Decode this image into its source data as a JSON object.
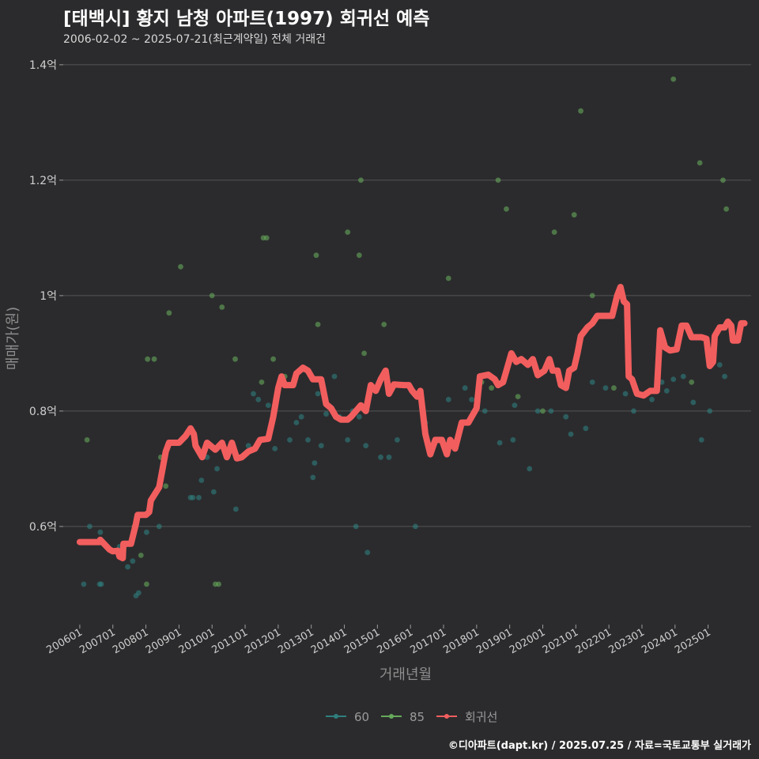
{
  "header": {
    "title": "[태백시] 황지 남청 아파트(1997) 회귀선 예측",
    "subtitle": "2006-02-02 ~ 2025-07-21(최근계약일) 전체 거래건"
  },
  "footer": {
    "credit": "©디아파트(dapt.kr) / 2025.07.25 / 자료=국토교통부 실거래가"
  },
  "colors": {
    "background": "#2b2b2d",
    "grid": "#555555",
    "series_60": "#2f7f7f",
    "series_85": "#66a95a",
    "regression": "#f25e5e"
  },
  "chart_data": {
    "type": "scatter",
    "xlabel": "거래년월",
    "ylabel": "매매가(원)",
    "x_range": [
      2005.5,
      2026.3
    ],
    "ylim": [
      0.43,
      1.43
    ],
    "y_ticks": [
      {
        "value": 0.6,
        "label": "0.6억"
      },
      {
        "value": 0.8,
        "label": "0.8억"
      },
      {
        "value": 1.0,
        "label": "1억"
      },
      {
        "value": 1.2,
        "label": "1.2억"
      },
      {
        "value": 1.4,
        "label": "1.4억"
      }
    ],
    "x_ticks": [
      {
        "value": 2006.0,
        "label": "200601"
      },
      {
        "value": 2007.0,
        "label": "200701"
      },
      {
        "value": 2008.0,
        "label": "200801"
      },
      {
        "value": 2009.0,
        "label": "200901"
      },
      {
        "value": 2010.0,
        "label": "201001"
      },
      {
        "value": 2011.0,
        "label": "201101"
      },
      {
        "value": 2012.0,
        "label": "201201"
      },
      {
        "value": 2013.0,
        "label": "201301"
      },
      {
        "value": 2014.0,
        "label": "201401"
      },
      {
        "value": 2015.0,
        "label": "201501"
      },
      {
        "value": 2016.0,
        "label": "201601"
      },
      {
        "value": 2017.0,
        "label": "201701"
      },
      {
        "value": 2018.0,
        "label": "201801"
      },
      {
        "value": 2019.0,
        "label": "201901"
      },
      {
        "value": 2020.0,
        "label": "202001"
      },
      {
        "value": 2021.0,
        "label": "202101"
      },
      {
        "value": 2022.0,
        "label": "202201"
      },
      {
        "value": 2023.0,
        "label": "202301"
      },
      {
        "value": 2024.0,
        "label": "202401"
      },
      {
        "value": 2025.0,
        "label": "202501"
      }
    ],
    "legend": [
      {
        "name": "60",
        "key": "series_60"
      },
      {
        "name": "85",
        "key": "series_85"
      },
      {
        "name": "회귀선",
        "key": "regression"
      }
    ],
    "series": [
      {
        "name": "60",
        "points": [
          [
            2006.12,
            0.5
          ],
          [
            2006.3,
            0.6
          ],
          [
            2006.6,
            0.5
          ],
          [
            2006.65,
            0.5
          ],
          [
            2006.62,
            0.59
          ],
          [
            2007.2,
            0.565
          ],
          [
            2007.45,
            0.53
          ],
          [
            2007.6,
            0.54
          ],
          [
            2007.7,
            0.48
          ],
          [
            2007.78,
            0.485
          ],
          [
            2008.02,
            0.59
          ],
          [
            2008.4,
            0.6
          ],
          [
            2009.35,
            0.65
          ],
          [
            2009.42,
            0.65
          ],
          [
            2009.6,
            0.65
          ],
          [
            2009.68,
            0.68
          ],
          [
            2009.85,
            0.72
          ],
          [
            2010.05,
            0.66
          ],
          [
            2010.15,
            0.7
          ],
          [
            2010.45,
            0.73
          ],
          [
            2010.72,
            0.63
          ],
          [
            2011.1,
            0.74
          ],
          [
            2011.25,
            0.83
          ],
          [
            2011.4,
            0.82
          ],
          [
            2011.7,
            0.81
          ],
          [
            2011.9,
            0.735
          ],
          [
            2012.35,
            0.75
          ],
          [
            2012.55,
            0.78
          ],
          [
            2012.7,
            0.79
          ],
          [
            2012.9,
            0.75
          ],
          [
            2013.05,
            0.685
          ],
          [
            2013.1,
            0.71
          ],
          [
            2013.2,
            0.83
          ],
          [
            2013.3,
            0.74
          ],
          [
            2013.45,
            0.795
          ],
          [
            2013.7,
            0.86
          ],
          [
            2013.85,
            0.79
          ],
          [
            2014.1,
            0.75
          ],
          [
            2014.25,
            0.8
          ],
          [
            2014.35,
            0.6
          ],
          [
            2014.45,
            0.79
          ],
          [
            2014.65,
            0.74
          ],
          [
            2014.7,
            0.555
          ],
          [
            2015.1,
            0.72
          ],
          [
            2015.35,
            0.72
          ],
          [
            2015.6,
            0.75
          ],
          [
            2016.15,
            0.6
          ],
          [
            2016.45,
            0.78
          ],
          [
            2017.15,
            0.82
          ],
          [
            2017.65,
            0.84
          ],
          [
            2017.85,
            0.82
          ],
          [
            2018.25,
            0.8
          ],
          [
            2018.7,
            0.745
          ],
          [
            2019.1,
            0.75
          ],
          [
            2019.15,
            0.81
          ],
          [
            2019.6,
            0.7
          ],
          [
            2019.85,
            0.8
          ],
          [
            2020.25,
            0.8
          ],
          [
            2020.7,
            0.79
          ],
          [
            2020.85,
            0.76
          ],
          [
            2021.3,
            0.77
          ],
          [
            2021.5,
            0.85
          ],
          [
            2021.9,
            0.84
          ],
          [
            2022.5,
            0.83
          ],
          [
            2022.75,
            0.8
          ],
          [
            2023.3,
            0.82
          ],
          [
            2023.6,
            0.85
          ],
          [
            2023.75,
            0.835
          ],
          [
            2023.95,
            0.855
          ],
          [
            2024.25,
            0.86
          ],
          [
            2024.55,
            0.815
          ],
          [
            2024.8,
            0.75
          ],
          [
            2025.35,
            0.88
          ],
          [
            2025.5,
            0.86
          ],
          [
            2025.05,
            0.8
          ]
        ]
      },
      {
        "name": "85",
        "points": [
          [
            2006.22,
            0.75
          ],
          [
            2007.65,
            0.6
          ],
          [
            2007.85,
            0.55
          ],
          [
            2008.02,
            0.5
          ],
          [
            2008.05,
            0.89
          ],
          [
            2008.25,
            0.89
          ],
          [
            2008.45,
            0.72
          ],
          [
            2008.6,
            0.67
          ],
          [
            2008.7,
            0.97
          ],
          [
            2009.05,
            1.05
          ],
          [
            2009.5,
            0.74
          ],
          [
            2010.0,
            1.0
          ],
          [
            2010.1,
            0.5
          ],
          [
            2010.2,
            0.5
          ],
          [
            2010.3,
            0.98
          ],
          [
            2010.7,
            0.89
          ],
          [
            2011.5,
            0.85
          ],
          [
            2011.55,
            1.1
          ],
          [
            2011.65,
            1.1
          ],
          [
            2011.85,
            0.89
          ],
          [
            2012.2,
            0.86
          ],
          [
            2013.15,
            1.07
          ],
          [
            2013.2,
            0.95
          ],
          [
            2014.1,
            1.11
          ],
          [
            2014.45,
            1.07
          ],
          [
            2014.5,
            1.2
          ],
          [
            2014.6,
            0.9
          ],
          [
            2015.2,
            0.95
          ],
          [
            2017.15,
            1.03
          ],
          [
            2018.15,
            0.85
          ],
          [
            2018.45,
            0.84
          ],
          [
            2018.65,
            1.2
          ],
          [
            2018.9,
            1.15
          ],
          [
            2019.25,
            0.825
          ],
          [
            2020.0,
            0.8
          ],
          [
            2020.35,
            1.11
          ],
          [
            2020.95,
            1.14
          ],
          [
            2021.15,
            1.32
          ],
          [
            2021.5,
            1.0
          ],
          [
            2022.15,
            0.84
          ],
          [
            2023.95,
            1.375
          ],
          [
            2024.5,
            0.85
          ],
          [
            2024.75,
            1.23
          ],
          [
            2025.45,
            1.2
          ],
          [
            2025.55,
            1.15
          ]
        ]
      }
    ],
    "regression": [
      [
        2006.0,
        0.573
      ],
      [
        2006.6,
        0.573
      ],
      [
        2006.62,
        0.577
      ],
      [
        2006.9,
        0.56
      ],
      [
        2007.0,
        0.557
      ],
      [
        2007.15,
        0.558
      ],
      [
        2007.2,
        0.548
      ],
      [
        2007.3,
        0.545
      ],
      [
        2007.32,
        0.57
      ],
      [
        2007.55,
        0.57
      ],
      [
        2007.7,
        0.605
      ],
      [
        2007.75,
        0.62
      ],
      [
        2008.0,
        0.62
      ],
      [
        2008.1,
        0.625
      ],
      [
        2008.15,
        0.645
      ],
      [
        2008.4,
        0.668
      ],
      [
        2008.6,
        0.73
      ],
      [
        2008.7,
        0.745
      ],
      [
        2009.0,
        0.745
      ],
      [
        2009.2,
        0.757
      ],
      [
        2009.35,
        0.77
      ],
      [
        2009.45,
        0.76
      ],
      [
        2009.5,
        0.74
      ],
      [
        2009.7,
        0.72
      ],
      [
        2009.85,
        0.745
      ],
      [
        2010.1,
        0.733
      ],
      [
        2010.3,
        0.745
      ],
      [
        2010.45,
        0.72
      ],
      [
        2010.6,
        0.745
      ],
      [
        2010.75,
        0.718
      ],
      [
        2010.9,
        0.72
      ],
      [
        2011.1,
        0.73
      ],
      [
        2011.3,
        0.735
      ],
      [
        2011.45,
        0.75
      ],
      [
        2011.7,
        0.752
      ],
      [
        2011.85,
        0.79
      ],
      [
        2012.0,
        0.84
      ],
      [
        2012.1,
        0.86
      ],
      [
        2012.2,
        0.845
      ],
      [
        2012.45,
        0.845
      ],
      [
        2012.55,
        0.865
      ],
      [
        2012.75,
        0.875
      ],
      [
        2012.9,
        0.87
      ],
      [
        2013.05,
        0.855
      ],
      [
        2013.3,
        0.855
      ],
      [
        2013.45,
        0.812
      ],
      [
        2013.6,
        0.805
      ],
      [
        2013.75,
        0.79
      ],
      [
        2013.9,
        0.785
      ],
      [
        2014.1,
        0.785
      ],
      [
        2014.2,
        0.79
      ],
      [
        2014.35,
        0.8
      ],
      [
        2014.5,
        0.81
      ],
      [
        2014.65,
        0.8
      ],
      [
        2014.8,
        0.845
      ],
      [
        2014.95,
        0.835
      ],
      [
        2015.1,
        0.855
      ],
      [
        2015.25,
        0.87
      ],
      [
        2015.35,
        0.83
      ],
      [
        2015.5,
        0.846
      ],
      [
        2015.8,
        0.845
      ],
      [
        2015.95,
        0.845
      ],
      [
        2016.05,
        0.835
      ],
      [
        2016.2,
        0.825
      ],
      [
        2016.3,
        0.835
      ],
      [
        2016.45,
        0.76
      ],
      [
        2016.6,
        0.725
      ],
      [
        2016.75,
        0.75
      ],
      [
        2016.95,
        0.75
      ],
      [
        2017.1,
        0.725
      ],
      [
        2017.2,
        0.75
      ],
      [
        2017.35,
        0.735
      ],
      [
        2017.55,
        0.78
      ],
      [
        2017.75,
        0.78
      ],
      [
        2017.9,
        0.795
      ],
      [
        2018.0,
        0.805
      ],
      [
        2018.1,
        0.86
      ],
      [
        2018.35,
        0.863
      ],
      [
        2018.55,
        0.855
      ],
      [
        2018.65,
        0.845
      ],
      [
        2018.8,
        0.85
      ],
      [
        2018.95,
        0.88
      ],
      [
        2019.05,
        0.9
      ],
      [
        2019.2,
        0.885
      ],
      [
        2019.35,
        0.89
      ],
      [
        2019.55,
        0.88
      ],
      [
        2019.7,
        0.89
      ],
      [
        2019.85,
        0.862
      ],
      [
        2020.05,
        0.87
      ],
      [
        2020.2,
        0.89
      ],
      [
        2020.3,
        0.87
      ],
      [
        2020.45,
        0.87
      ],
      [
        2020.55,
        0.845
      ],
      [
        2020.7,
        0.84
      ],
      [
        2020.8,
        0.87
      ],
      [
        2020.95,
        0.875
      ],
      [
        2021.05,
        0.9
      ],
      [
        2021.15,
        0.93
      ],
      [
        2021.35,
        0.945
      ],
      [
        2021.5,
        0.952
      ],
      [
        2021.65,
        0.965
      ],
      [
        2021.95,
        0.965
      ],
      [
        2022.1,
        0.965
      ],
      [
        2022.25,
        1.0
      ],
      [
        2022.35,
        1.015
      ],
      [
        2022.45,
        0.99
      ],
      [
        2022.55,
        0.985
      ],
      [
        2022.6,
        0.86
      ],
      [
        2022.7,
        0.855
      ],
      [
        2022.85,
        0.83
      ],
      [
        2023.05,
        0.827
      ],
      [
        2023.25,
        0.835
      ],
      [
        2023.45,
        0.835
      ],
      [
        2023.55,
        0.94
      ],
      [
        2023.7,
        0.91
      ],
      [
        2023.85,
        0.905
      ],
      [
        2024.05,
        0.907
      ],
      [
        2024.2,
        0.948
      ],
      [
        2024.35,
        0.948
      ],
      [
        2024.5,
        0.928
      ],
      [
        2024.8,
        0.928
      ],
      [
        2024.95,
        0.925
      ],
      [
        2025.05,
        0.878
      ],
      [
        2025.15,
        0.885
      ],
      [
        2025.2,
        0.93
      ],
      [
        2025.35,
        0.945
      ],
      [
        2025.5,
        0.945
      ],
      [
        2025.6,
        0.955
      ],
      [
        2025.7,
        0.948
      ],
      [
        2025.75,
        0.922
      ],
      [
        2025.9,
        0.922
      ],
      [
        2026.0,
        0.952
      ],
      [
        2026.1,
        0.952
      ]
    ]
  }
}
